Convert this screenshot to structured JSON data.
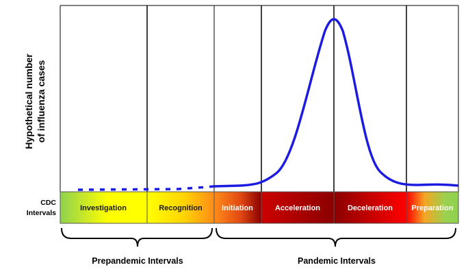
{
  "diagram": {
    "y_axis_label_line1": "Hypothetical number",
    "y_axis_label_line2": "of influenza cases",
    "cdc_label_line1": "CDC",
    "cdc_label_line2": "Intervals",
    "intervals": [
      {
        "label": "Investigation",
        "group": "prepandemic"
      },
      {
        "label": "Recognition",
        "group": "prepandemic"
      },
      {
        "label": "Initiation",
        "group": "pandemic"
      },
      {
        "label": "Acceleration",
        "group": "pandemic"
      },
      {
        "label": "Deceleration",
        "group": "pandemic"
      },
      {
        "label": "Preparation",
        "group": "pandemic"
      }
    ],
    "groups": {
      "prepandemic": "Prepandemic Intervals",
      "pandemic": "Pandemic Intervals"
    },
    "colors": {
      "curve": "#1c1ce0",
      "gradient_green": "#8fd14f",
      "gradient_yellow": "#ffff00",
      "gradient_orange": "#ff8c1a",
      "gradient_darkred": "#8b0000",
      "gradient_red": "#ff0000"
    }
  }
}
